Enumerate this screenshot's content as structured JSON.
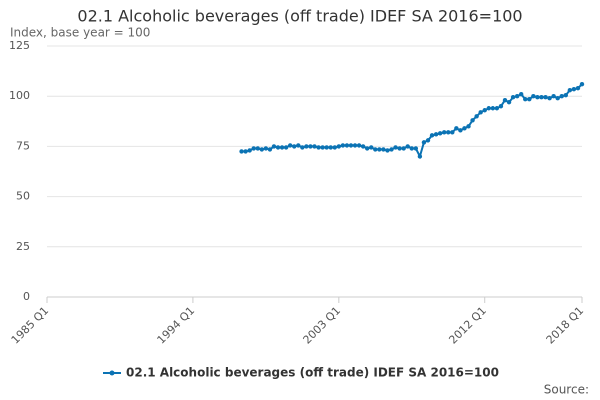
{
  "chart_data": {
    "type": "line",
    "title": "02.1 Alcoholic beverages (off trade) IDEF SA 2016=100",
    "subtitle": "Index, base year = 100",
    "source": "Source:",
    "x": [
      1997,
      1997.25,
      1997.5,
      1997.75,
      1998,
      1998.25,
      1998.5,
      1998.75,
      1999,
      1999.25,
      1999.5,
      1999.75,
      2000,
      2000.25,
      2000.5,
      2000.75,
      2001,
      2001.25,
      2001.5,
      2001.75,
      2002,
      2002.25,
      2002.5,
      2002.75,
      2003,
      2003.25,
      2003.5,
      2003.75,
      2004,
      2004.25,
      2004.5,
      2004.75,
      2005,
      2005.25,
      2005.5,
      2005.75,
      2006,
      2006.25,
      2006.5,
      2006.75,
      2007,
      2007.25,
      2007.5,
      2007.75,
      2008,
      2008.25,
      2008.5,
      2008.75,
      2009,
      2009.25,
      2009.5,
      2009.75,
      2010,
      2010.25,
      2010.5,
      2010.75,
      2011,
      2011.25,
      2011.5,
      2011.75,
      2012,
      2012.25,
      2012.5,
      2012.75,
      2013,
      2013.25,
      2013.5,
      2013.75,
      2014,
      2014.25,
      2014.5,
      2014.75,
      2015,
      2015.25,
      2015.5,
      2015.75,
      2016,
      2016.25,
      2016.5,
      2016.75,
      2017,
      2017.25,
      2017.5,
      2017.75,
      2018
    ],
    "series": [
      {
        "name": "02.1 Alcoholic beverages (off trade) IDEF SA 2016=100",
        "color": "#0b73b4",
        "values": [
          72.5,
          72.5,
          73,
          74,
          74,
          73.5,
          74,
          73.5,
          75,
          74.5,
          74.5,
          74.5,
          75.5,
          75,
          75.5,
          74.5,
          75,
          75,
          75,
          74.5,
          74.5,
          74.5,
          74.5,
          74.5,
          75,
          75.5,
          75.5,
          75.5,
          75.5,
          75.5,
          75,
          74,
          74.5,
          73.5,
          73.5,
          73.5,
          73,
          73.5,
          74.5,
          74,
          74,
          75,
          74,
          74,
          70,
          77,
          78,
          80.5,
          81,
          81.5,
          82,
          82,
          82,
          84,
          83,
          84,
          85,
          88,
          90,
          92,
          93,
          94,
          94,
          94,
          95,
          98,
          97,
          99.5,
          100,
          101,
          98.5,
          98.5,
          100,
          99.5,
          99.5,
          99.5,
          99,
          100,
          99,
          100,
          100.5,
          103,
          103.5,
          104,
          106
        ]
      }
    ],
    "xlim": [
      1985,
      2018
    ],
    "xticks": [
      {
        "value": 1985,
        "label": "1985 Q1"
      },
      {
        "value": 1994,
        "label": "1994 Q1"
      },
      {
        "value": 2003,
        "label": "2003 Q1"
      },
      {
        "value": 2012,
        "label": "2012 Q1"
      },
      {
        "value": 2018,
        "label": "2018 Q1"
      }
    ],
    "ylim": [
      0,
      125
    ],
    "yticks": [
      0,
      25,
      50,
      75,
      100,
      125
    ],
    "grid": true,
    "legend": "bottom"
  }
}
